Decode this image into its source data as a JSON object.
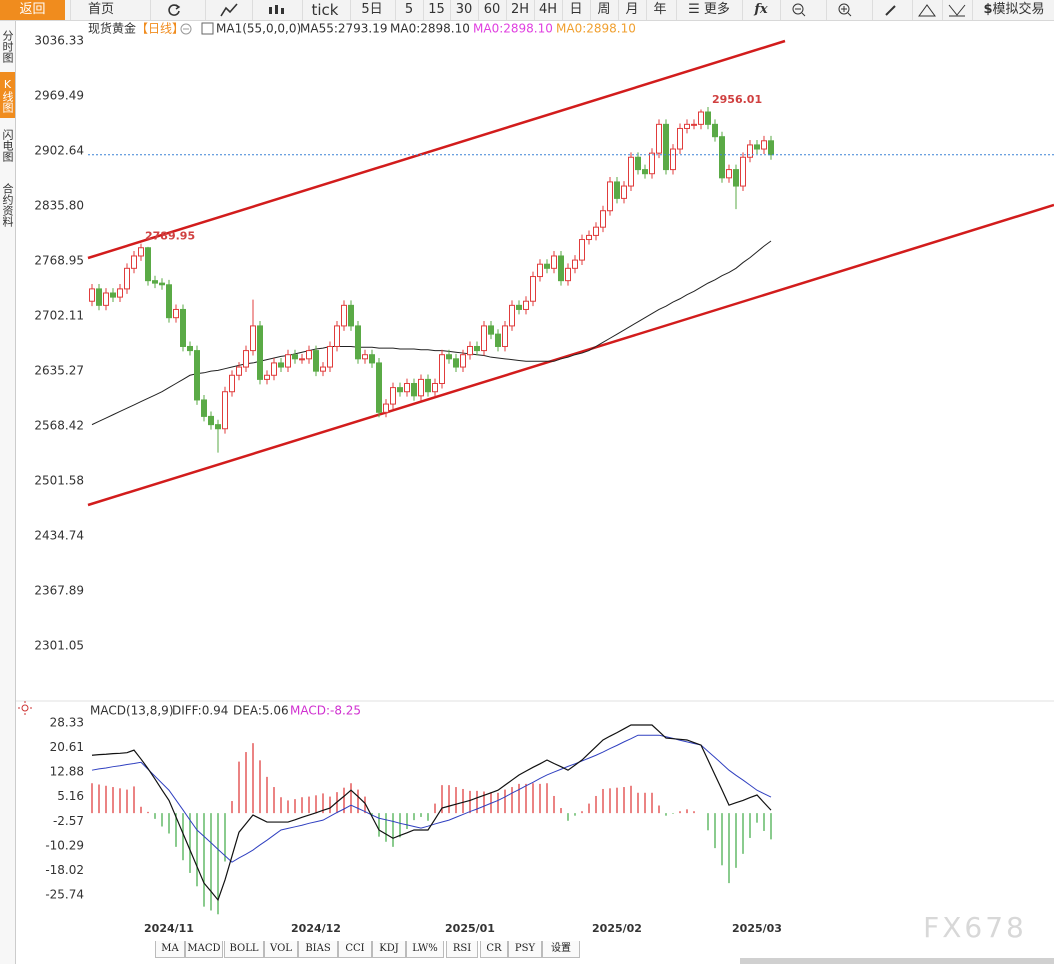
{
  "toolbar": {
    "back": "返回",
    "home": "首页",
    "periods": [
      "tick",
      "5日",
      "5",
      "15",
      "30",
      "60",
      "2H",
      "4H",
      "日",
      "周",
      "月",
      "年"
    ],
    "more": "更多",
    "formula": "fx",
    "trade_icon": "$",
    "trade": "模拟交易"
  },
  "sidebar": [
    "分时图",
    "K线图",
    "闪电图",
    "合约资料"
  ],
  "chart_data": [
    {
      "type": "candlestick",
      "title": "现货黄金",
      "period": "【日线】",
      "legend": [
        {
          "text": "MA1(55,0,0,0)",
          "color": "#333333"
        },
        {
          "text": "MA55:2793.19",
          "color": "#333333"
        },
        {
          "text": "MA0:2898.10",
          "color": "#333333"
        },
        {
          "text": "MA0:2898.10",
          "color": "#e040e0"
        },
        {
          "text": "MA0:2898.10",
          "color": "#f0a030"
        }
      ],
      "categories": [
        null,
        null,
        null,
        null,
        null,
        null,
        null,
        null,
        null,
        null,
        null,
        "2024/11",
        null,
        null,
        null,
        null,
        null,
        null,
        null,
        null,
        null,
        null,
        null,
        null,
        null,
        null,
        null,
        null,
        null,
        null,
        null,
        null,
        "2024/12",
        null,
        null,
        null,
        null,
        null,
        null,
        null,
        null,
        null,
        null,
        null,
        null,
        null,
        null,
        null,
        null,
        null,
        null,
        null,
        null,
        null,
        "2025/01",
        null,
        null,
        null,
        null,
        null,
        null,
        null,
        null,
        null,
        null,
        null,
        null,
        null,
        null,
        null,
        null,
        null,
        null,
        null,
        null,
        "2025/02",
        null,
        null,
        null,
        null,
        null,
        null,
        null,
        null,
        null,
        null,
        null,
        null,
        null,
        null,
        null,
        null,
        null,
        null,
        null,
        "2025/03",
        null,
        null
      ],
      "open": [
        2720,
        2735,
        2715,
        2730,
        2725,
        2735,
        2760,
        2775,
        2785,
        2745,
        2742,
        2740,
        2700,
        2710,
        2665,
        2660,
        2600,
        2580,
        2570,
        2565,
        2610,
        2630,
        2640,
        2660,
        2690,
        2625,
        2630,
        2645,
        2640,
        2655,
        2650,
        2650,
        2660,
        2635,
        2640,
        2665,
        2690,
        2715,
        2690,
        2650,
        2655,
        2645,
        2585,
        2595,
        2615,
        2610,
        2620,
        2605,
        2625,
        2610,
        2620,
        2655,
        2650,
        2640,
        2655,
        2665,
        2660,
        2690,
        2680,
        2665,
        2690,
        2715,
        2710,
        2720,
        2750,
        2765,
        2760,
        2775,
        2745,
        2760,
        2770,
        2795,
        2800,
        2810,
        2830,
        2865,
        2845,
        2860,
        2895,
        2880,
        2875,
        2900,
        2935,
        2880,
        2905,
        2930,
        2935,
        2935,
        2950,
        2935,
        2920,
        2870,
        2880,
        2860,
        2895,
        2910,
        2905,
        2915
      ],
      "high": [
        2741,
        2741,
        2736,
        2736,
        2741,
        2766,
        2781,
        2789.95,
        2786,
        2751,
        2748,
        2746,
        2716,
        2716,
        2671,
        2666,
        2606,
        2586,
        2576,
        2616,
        2636,
        2646,
        2666,
        2722,
        2696,
        2636,
        2651,
        2651,
        2661,
        2661,
        2656,
        2666,
        2666,
        2646,
        2671,
        2696,
        2721,
        2721,
        2696,
        2661,
        2661,
        2651,
        2601,
        2621,
        2621,
        2626,
        2626,
        2631,
        2631,
        2626,
        2661,
        2661,
        2656,
        2661,
        2671,
        2671,
        2696,
        2696,
        2686,
        2696,
        2721,
        2721,
        2726,
        2756,
        2771,
        2771,
        2781,
        2781,
        2766,
        2776,
        2801,
        2806,
        2816,
        2836,
        2871,
        2871,
        2866,
        2901,
        2901,
        2886,
        2906,
        2941,
        2941,
        2911,
        2936,
        2941,
        2941,
        2953,
        2956.01,
        2941,
        2926,
        2886,
        2886,
        2901,
        2916,
        2916,
        2921,
        2921
      ],
      "low": [
        2714,
        2709,
        2709,
        2719,
        2719,
        2729,
        2754,
        2769,
        2739,
        2736,
        2734,
        2694,
        2694,
        2659,
        2654,
        2594,
        2574,
        2564,
        2536,
        2559,
        2604,
        2624,
        2634,
        2654,
        2619,
        2619,
        2624,
        2634,
        2634,
        2644,
        2644,
        2644,
        2629,
        2629,
        2634,
        2659,
        2684,
        2684,
        2644,
        2644,
        2639,
        2579,
        2579,
        2589,
        2604,
        2604,
        2599,
        2599,
        2604,
        2604,
        2614,
        2644,
        2634,
        2634,
        2649,
        2654,
        2654,
        2674,
        2659,
        2659,
        2684,
        2704,
        2704,
        2714,
        2744,
        2754,
        2754,
        2739,
        2739,
        2754,
        2764,
        2789,
        2794,
        2804,
        2824,
        2839,
        2839,
        2854,
        2874,
        2869,
        2869,
        2894,
        2874,
        2874,
        2899,
        2924,
        2929,
        2929,
        2929,
        2914,
        2864,
        2864,
        2832,
        2854,
        2889,
        2899,
        2899,
        2892
      ],
      "close": [
        2735,
        2715,
        2730,
        2725,
        2735,
        2760,
        2775,
        2785,
        2745,
        2742,
        2740,
        2700,
        2710,
        2665,
        2660,
        2600,
        2580,
        2570,
        2565,
        2610,
        2630,
        2640,
        2660,
        2690,
        2625,
        2630,
        2645,
        2640,
        2655,
        2650,
        2650,
        2660,
        2635,
        2640,
        2665,
        2690,
        2715,
        2690,
        2650,
        2655,
        2645,
        2585,
        2595,
        2615,
        2610,
        2620,
        2605,
        2625,
        2610,
        2620,
        2655,
        2650,
        2640,
        2655,
        2665,
        2660,
        2690,
        2680,
        2665,
        2690,
        2715,
        2710,
        2720,
        2750,
        2765,
        2760,
        2775,
        2745,
        2760,
        2770,
        2795,
        2800,
        2810,
        2830,
        2865,
        2845,
        2860,
        2895,
        2880,
        2875,
        2900,
        2935,
        2880,
        2905,
        2930,
        2935,
        2935,
        2950,
        2935,
        2920,
        2870,
        2880,
        2860,
        2895,
        2910,
        2905,
        2915,
        2898.1
      ],
      "ma55": [
        2570,
        2574,
        2578,
        2582,
        2586,
        2590,
        2594,
        2598,
        2602,
        2606,
        2610,
        2615,
        2620,
        2625,
        2630,
        2632,
        2633,
        2635,
        2636,
        2638,
        2640,
        2642,
        2644,
        2645,
        2647,
        2649,
        2651,
        2653,
        2654,
        2656,
        2658,
        2660,
        2662,
        2663,
        2665,
        2665,
        2665,
        2665,
        2664,
        2664,
        2664,
        2663,
        2663,
        2663,
        2662,
        2662,
        2662,
        2661,
        2661,
        2660,
        2660,
        2659,
        2658,
        2657,
        2656,
        2655,
        2654,
        2652,
        2651,
        2650,
        2649,
        2648,
        2647,
        2647,
        2647,
        2647,
        2647,
        2650,
        2652,
        2655,
        2657,
        2660,
        2665,
        2670,
        2675,
        2680,
        2685,
        2690,
        2695,
        2700,
        2705,
        2710,
        2714,
        2719,
        2723,
        2728,
        2732,
        2737,
        2742,
        2746,
        2751,
        2755,
        2760,
        2767,
        2773,
        2780,
        2787,
        2793.19
      ],
      "ylim": [
        2235.3,
        3059.4
      ],
      "yticks": [
        3036.33,
        2969.49,
        2902.64,
        {
          "value": 2835.8,
          "label": "2835.80"
        },
        2768.95,
        2702.11,
        2635.27,
        2568.42,
        2501.58,
        2434.74,
        2367.89,
        2301.05
      ],
      "grid": false,
      "up_color": "#e03c3c",
      "down_color": "#5aaa46",
      "ma_color": "#222222",
      "last_line_color": "#3b82d6",
      "marker_color": "#d04040"
    },
    {
      "type": "macd",
      "legend": [
        {
          "text": "MACD(13,8,9)",
          "color": "#333333"
        },
        {
          "text": "DIFF:0.94",
          "color": "#333333"
        },
        {
          "text": "DEA:5.06",
          "color": "#333333"
        },
        {
          "text": "MACD:-8.25",
          "color": "#d030d0"
        }
      ],
      "diff": [
        18.2,
        18.4,
        18.5,
        18.7,
        18.8,
        19.0,
        19.8,
        17.0,
        14.0,
        10.7,
        7.3,
        4.0,
        -1.2,
        -6.4,
        -11.6,
        -16.8,
        -22.0,
        -24.6,
        -27.3,
        -21.0,
        -13.5,
        -6.0,
        -3.3,
        -0.6,
        -1.7,
        -2.8,
        -2.8,
        -2.8,
        -2.8,
        -2.1,
        -1.3,
        -0.6,
        0.1,
        0.9,
        1.6,
        3.5,
        5.3,
        7.2,
        5.2,
        3.1,
        -1.1,
        -5.3,
        -6.6,
        -7.9,
        -7.0,
        -6.2,
        -5.3,
        -5.3,
        -5.3,
        -1.9,
        1.6,
        2.2,
        2.8,
        3.4,
        4.0,
        4.8,
        5.6,
        6.4,
        7.2,
        8.8,
        10.4,
        12.0,
        13.2,
        14.4,
        15.5,
        16.7,
        15.6,
        14.6,
        13.5,
        15.1,
        16.7,
        18.8,
        20.9,
        23.0,
        24.2,
        25.3,
        26.5,
        27.7,
        27.7,
        27.7,
        27.7,
        25.7,
        23.6,
        23.4,
        23.2,
        23.0,
        22.2,
        21.4,
        16.7,
        12.0,
        7.3,
        2.5,
        3.3,
        4.0,
        4.9,
        5.7,
        3.3,
        0.94
      ],
      "dea": [
        13.5,
        13.9,
        14.2,
        14.6,
        14.9,
        15.3,
        15.6,
        16.0,
        13.8,
        11.6,
        9.4,
        7.2,
        4.1,
        1.0,
        -2.2,
        -5.3,
        -7.3,
        -9.3,
        -11.4,
        -13.4,
        -15.4,
        -14.1,
        -12.9,
        -11.6,
        -10.0,
        -8.5,
        -6.9,
        -5.3,
        -4.8,
        -4.3,
        -3.8,
        -3.2,
        -2.7,
        -2.2,
        -1.0,
        0.2,
        1.3,
        2.5,
        1.5,
        0.5,
        -0.6,
        -1.6,
        -2.1,
        -2.6,
        -3.2,
        -3.7,
        -4.2,
        -4.7,
        -4.1,
        -3.4,
        -2.8,
        -2.2,
        -1.3,
        -0.4,
        0.5,
        1.3,
        2.2,
        3.1,
        4.0,
        5.1,
        6.3,
        7.4,
        8.6,
        9.7,
        10.9,
        12.0,
        12.9,
        13.8,
        14.7,
        15.5,
        16.4,
        17.3,
        18.2,
        19.2,
        20.3,
        21.3,
        22.4,
        23.4,
        24.5,
        24.5,
        24.5,
        24.5,
        24.0,
        23.5,
        22.9,
        22.4,
        21.9,
        21.4,
        19.4,
        17.5,
        15.5,
        13.5,
        11.9,
        10.4,
        8.8,
        7.2,
        6.1,
        5.06
      ],
      "macd": [
        9.4,
        9.0,
        8.6,
        8.2,
        7.8,
        7.4,
        8.4,
        2.0,
        0.4,
        -1.8,
        -4.2,
        -6.4,
        -10.6,
        -14.8,
        -18.8,
        -23.0,
        -29.4,
        -30.6,
        -31.8,
        -15.2,
        3.8,
        16.2,
        19.2,
        22.0,
        16.6,
        11.4,
        8.2,
        5.0,
        4.0,
        4.4,
        5.0,
        5.2,
        5.6,
        6.2,
        5.2,
        6.6,
        8.0,
        9.4,
        7.4,
        5.2,
        -1.0,
        -7.4,
        -9.0,
        -10.6,
        -7.6,
        -5.0,
        -2.2,
        -1.2,
        -2.4,
        3.0,
        8.8,
        8.8,
        8.2,
        7.6,
        7.0,
        7.0,
        6.8,
        6.6,
        6.4,
        7.4,
        8.2,
        9.2,
        9.2,
        9.4,
        9.2,
        9.4,
        5.4,
        1.6,
        -2.4,
        -0.8,
        0.6,
        3.0,
        5.4,
        7.6,
        7.8,
        8.0,
        8.2,
        8.6,
        6.4,
        6.4,
        6.4,
        2.4,
        -0.8,
        -0.2,
        0.6,
        1.2,
        0.6,
        0.0,
        -5.4,
        -11.0,
        -16.4,
        -22.0,
        -17.2,
        -12.8,
        -7.8,
        -3.0,
        -5.6,
        -8.25
      ],
      "ylim": [
        -36.74,
        30.85
      ],
      "yticks": [
        28.33,
        20.61,
        12.88,
        5.16,
        -2.57,
        -10.29,
        -18.02,
        -25.74
      ],
      "diff_color": "#111111",
      "dea_color": "#3040c0",
      "up_color": "#e04040",
      "down_color": "#4caf50"
    }
  ],
  "indicator_tabs": [
    "MA",
    "MACD",
    "BOLL",
    "VOL",
    "BIAS",
    "CCI",
    "KDJ",
    "LW%",
    "RSI",
    "CR",
    "PSY",
    "设置"
  ],
  "watermark": "FX678"
}
